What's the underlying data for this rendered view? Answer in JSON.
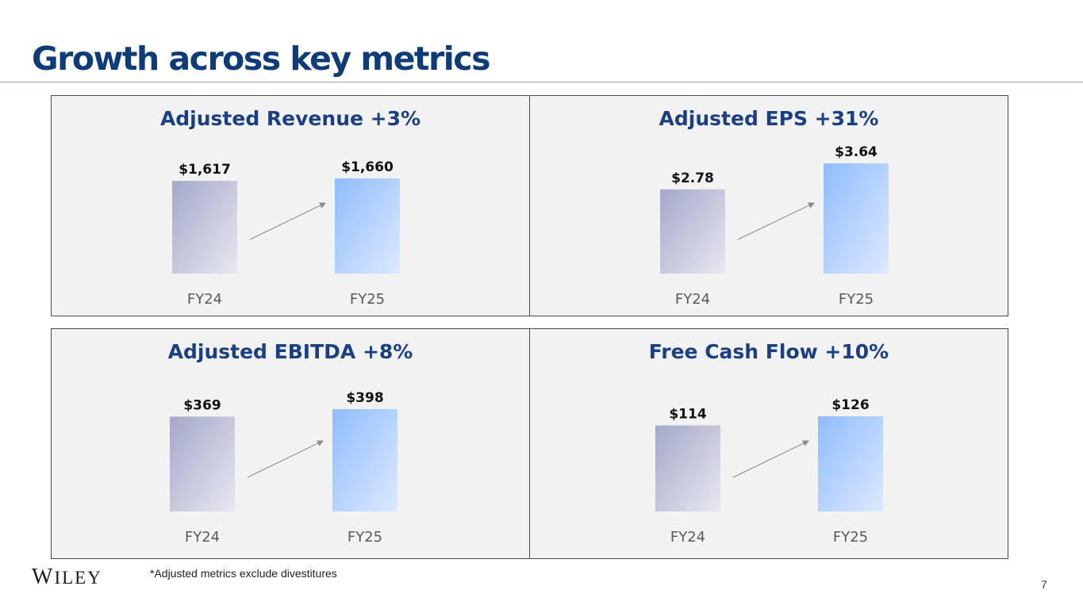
{
  "title": "Growth across key metrics",
  "footnote": "*Adjusted metrics exclude divestitures",
  "logo": {
    "first": "W",
    "rest": "ILEY"
  },
  "page_number": "7",
  "colors": {
    "title": "#0f3b78",
    "panel_title": "#1c3f83",
    "fy24_bar": "#a4a8c9",
    "fy25_bar": "#8fbcff",
    "arrow": "#8a8a8a"
  },
  "chart_data": [
    {
      "type": "bar",
      "title": "Adjusted Revenue +3%",
      "categories": [
        "FY24",
        "FY25"
      ],
      "values": [
        1617,
        1660
      ],
      "labels": [
        "$1,617",
        "$1,660"
      ]
    },
    {
      "type": "bar",
      "title": "Adjusted EPS +31%",
      "categories": [
        "FY24",
        "FY25"
      ],
      "values": [
        2.78,
        3.64
      ],
      "labels": [
        "$2.78",
        "$3.64"
      ]
    },
    {
      "type": "bar",
      "title": "Adjusted EBITDA +8%",
      "categories": [
        "FY24",
        "FY25"
      ],
      "values": [
        369,
        398
      ],
      "labels": [
        "$369",
        "$398"
      ]
    },
    {
      "type": "bar",
      "title": "Free Cash Flow +10%",
      "categories": [
        "FY24",
        "FY25"
      ],
      "values": [
        114,
        126
      ],
      "labels": [
        "$114",
        "$126"
      ]
    }
  ]
}
